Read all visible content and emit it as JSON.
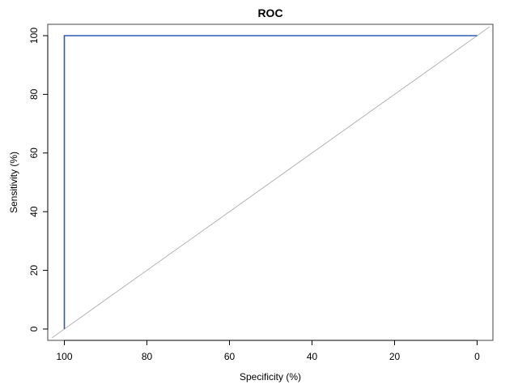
{
  "chart_data": {
    "type": "line",
    "title": "ROC",
    "xlabel": "Specificity (%)",
    "ylabel": "Sensitivity (%)",
    "x_reversed": true,
    "xlim": [
      100,
      0
    ],
    "ylim": [
      0,
      100
    ],
    "xticks": [
      "100",
      "80",
      "60",
      "40",
      "20",
      "0"
    ],
    "yticks": [
      "0",
      "20",
      "40",
      "60",
      "80",
      "100"
    ],
    "grid": false,
    "series": [
      {
        "color": "#2a5db0",
        "points": [
          {
            "specificity": 100,
            "sensitivity": 0
          },
          {
            "specificity": 100,
            "sensitivity": 100
          },
          {
            "specificity": 0,
            "sensitivity": 100
          }
        ]
      }
    ],
    "reference_line": {
      "color": "#b3b3b3",
      "points": [
        {
          "specificity": 100,
          "sensitivity": 0
        },
        {
          "specificity": 0,
          "sensitivity": 100
        }
      ]
    }
  }
}
